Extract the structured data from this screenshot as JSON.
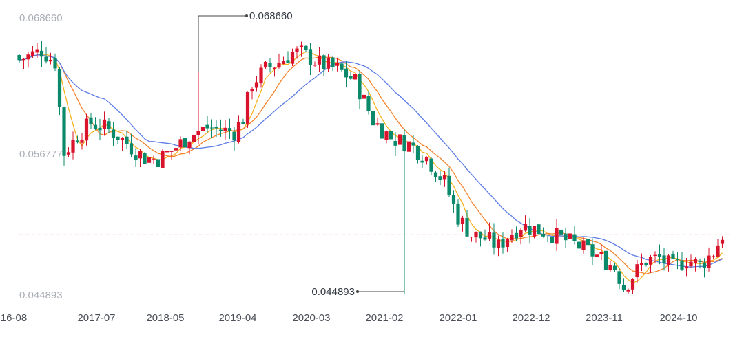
{
  "chart_data": {
    "type": "candlestick",
    "y_axis_labels": [
      "0.068660",
      "0.056777",
      "0.044893"
    ],
    "ylim": [
      0.044893,
      0.06866
    ],
    "x_tick_labels": [
      "16-08",
      "2017-07",
      "2018-05",
      "2019-04",
      "2020-03",
      "2021-02",
      "2022-01",
      "2022-12",
      "2023-11",
      "2024-10"
    ],
    "current_price_line": {
      "value": 0.05,
      "color": "#f08a8a"
    },
    "annotations": [
      {
        "label": "0.068660",
        "value": 0.06866,
        "period_index": 40
      },
      {
        "label": "0.044893",
        "value": 0.044893,
        "period_index": 86
      }
    ],
    "colors": {
      "up": "#d9132b",
      "down": "#0a8a6a",
      "ma_short": "#f6b11f",
      "ma_mid": "#f5822a",
      "ma_long": "#5b7be6"
    },
    "close_path": [
      [
        0,
        0.065
      ],
      [
        5,
        0.0658
      ],
      [
        8,
        0.0648
      ],
      [
        10,
        0.057
      ],
      [
        13,
        0.0585
      ],
      [
        16,
        0.0596
      ],
      [
        19,
        0.0592
      ],
      [
        22,
        0.0585
      ],
      [
        25,
        0.0575
      ],
      [
        28,
        0.0566
      ],
      [
        31,
        0.0565
      ],
      [
        34,
        0.0572
      ],
      [
        38,
        0.0585
      ],
      [
        42,
        0.0592
      ],
      [
        45,
        0.059
      ],
      [
        48,
        0.0588
      ],
      [
        50,
        0.06
      ],
      [
        52,
        0.063
      ],
      [
        55,
        0.0642
      ],
      [
        58,
        0.0648
      ],
      [
        61,
        0.0656
      ],
      [
        63,
        0.0656
      ],
      [
        67,
        0.0647
      ],
      [
        71,
        0.0642
      ],
      [
        75,
        0.0632
      ],
      [
        79,
        0.0598
      ],
      [
        83,
        0.0583
      ],
      [
        87,
        0.0578
      ],
      [
        91,
        0.0566
      ],
      [
        95,
        0.0545
      ],
      [
        98,
        0.0515
      ],
      [
        101,
        0.05
      ],
      [
        104,
        0.0497
      ],
      [
        107,
        0.049
      ],
      [
        109,
        0.0499
      ],
      [
        112,
        0.0508
      ],
      [
        115,
        0.0505
      ],
      [
        118,
        0.0502
      ],
      [
        121,
        0.0497
      ],
      [
        124,
        0.0492
      ],
      [
        127,
        0.0486
      ],
      [
        130,
        0.048
      ],
      [
        133,
        0.0472
      ],
      [
        135,
        0.0455
      ],
      [
        137,
        0.0465
      ],
      [
        140,
        0.0478
      ],
      [
        143,
        0.048
      ],
      [
        146,
        0.0472
      ],
      [
        149,
        0.0479
      ],
      [
        152,
        0.0474
      ],
      [
        155,
        0.0485
      ],
      [
        157,
        0.05
      ]
    ]
  }
}
